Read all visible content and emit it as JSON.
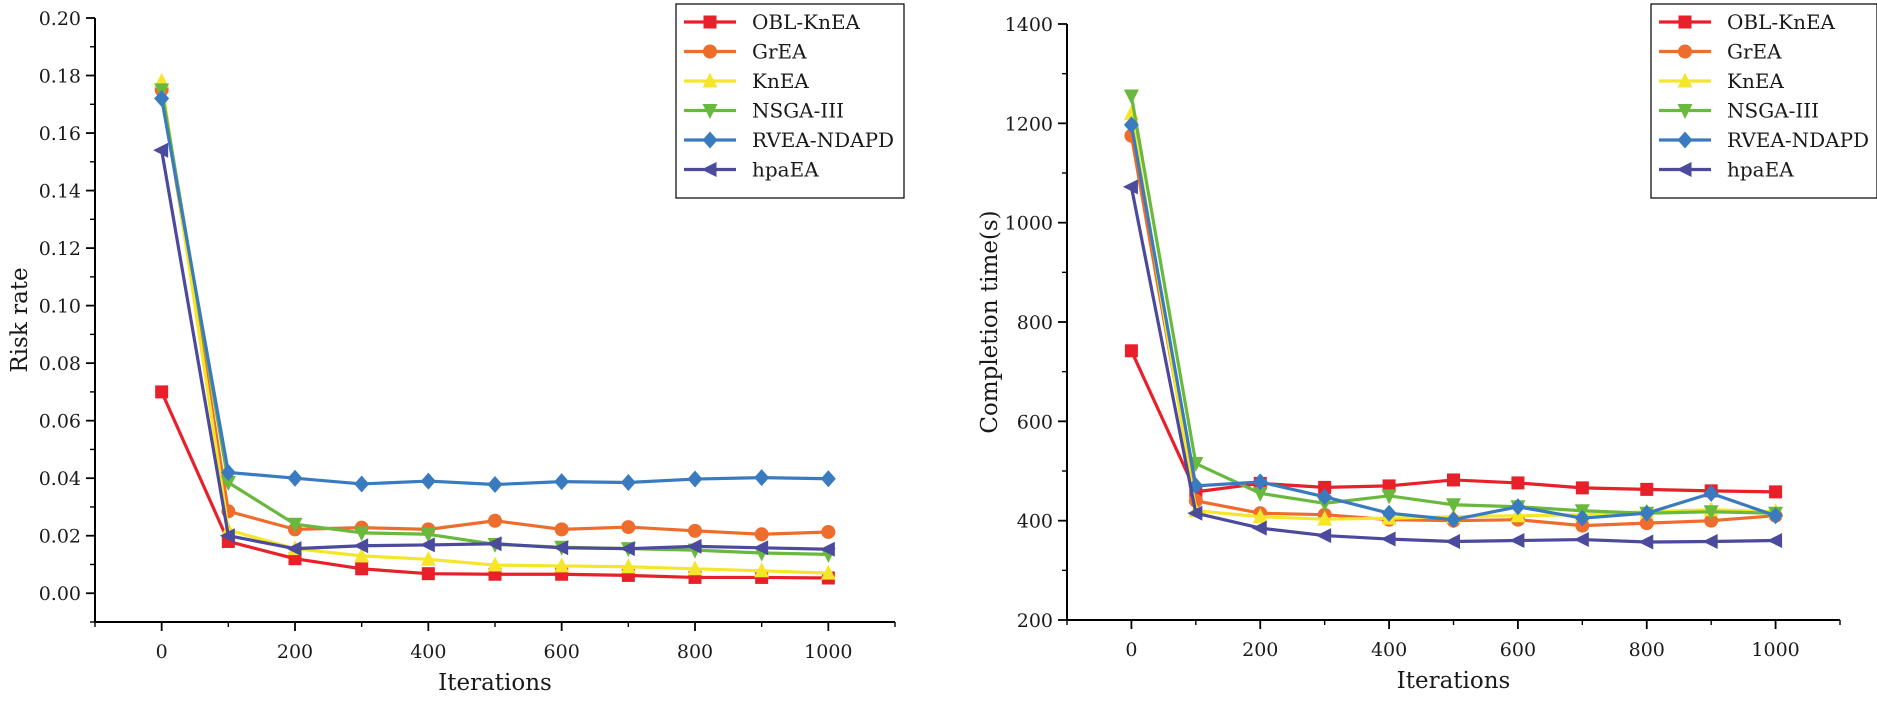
{
  "chart_data": [
    {
      "type": "line",
      "title": "",
      "xlabel": "Iterations",
      "ylabel": "Risk rate",
      "xlim": [
        -100,
        1100
      ],
      "ylim": [
        -0.01,
        0.2
      ],
      "x": [
        0,
        100,
        200,
        300,
        400,
        500,
        600,
        700,
        800,
        900,
        1000
      ],
      "x_ticks": [
        0,
        200,
        400,
        600,
        800,
        1000
      ],
      "x_tick_labels": [
        "0",
        "200",
        "400",
        "600",
        "800",
        "1000"
      ],
      "y_ticks": [
        0,
        0.02,
        0.04,
        0.06,
        0.08,
        0.1,
        0.12,
        0.14,
        0.16,
        0.18,
        0.2
      ],
      "y_tick_labels": [
        "0.00",
        "0.02",
        "0.04",
        "0.06",
        "0.08",
        "0.10",
        "0.12",
        "0.14",
        "0.16",
        "0.18",
        "0.20"
      ],
      "legend_position": "top-right",
      "grid": false,
      "series": [
        {
          "name": "OBL-KnEA",
          "color": "#e8202a",
          "marker": "square",
          "values": [
            0.07,
            0.018,
            0.012,
            0.0085,
            0.0068,
            0.0066,
            0.0066,
            0.0062,
            0.0055,
            0.0055,
            0.0053
          ]
        },
        {
          "name": "GrEA",
          "color": "#ee6d2c",
          "marker": "circle",
          "values": [
            0.175,
            0.0285,
            0.0222,
            0.0228,
            0.0222,
            0.0252,
            0.0222,
            0.023,
            0.0217,
            0.0205,
            0.0213
          ]
        },
        {
          "name": "KnEA",
          "color": "#f5e629",
          "marker": "triangle-up",
          "values": [
            0.178,
            0.022,
            0.0155,
            0.013,
            0.0118,
            0.0098,
            0.0095,
            0.0092,
            0.0085,
            0.0078,
            0.007
          ]
        },
        {
          "name": "NSGA-III",
          "color": "#6ab93f",
          "marker": "triangle-down",
          "values": [
            0.175,
            0.0385,
            0.024,
            0.021,
            0.0205,
            0.017,
            0.016,
            0.0155,
            0.015,
            0.014,
            0.0135
          ]
        },
        {
          "name": "RVEA-NDAPD",
          "color": "#3a7bbf",
          "marker": "diamond",
          "values": [
            0.172,
            0.042,
            0.04,
            0.038,
            0.039,
            0.0378,
            0.0388,
            0.0385,
            0.0397,
            0.0402,
            0.0398
          ]
        },
        {
          "name": "hpaEA",
          "color": "#4b4a9c",
          "marker": "triangle-left",
          "values": [
            0.154,
            0.02,
            0.0155,
            0.0165,
            0.0168,
            0.0172,
            0.0158,
            0.0155,
            0.0163,
            0.0158,
            0.0153
          ]
        }
      ]
    },
    {
      "type": "line",
      "title": "",
      "xlabel": "Iterations",
      "ylabel": "Completion time(s)",
      "xlim": [
        -100,
        1100
      ],
      "ylim": [
        200,
        1400
      ],
      "x": [
        0,
        100,
        200,
        300,
        400,
        500,
        600,
        700,
        800,
        900,
        1000
      ],
      "x_ticks": [
        0,
        200,
        400,
        600,
        800,
        1000
      ],
      "x_tick_labels": [
        "0",
        "200",
        "400",
        "600",
        "800",
        "1000"
      ],
      "y_ticks": [
        200,
        400,
        600,
        800,
        1000,
        1200,
        1400
      ],
      "y_tick_labels": [
        "200",
        "400",
        "600",
        "800",
        "1000",
        "1200",
        "1400"
      ],
      "legend_position": "top-right",
      "grid": false,
      "series": [
        {
          "name": "OBL-KnEA",
          "color": "#e8202a",
          "marker": "square",
          "values": [
            742,
            458,
            475,
            467,
            470,
            482,
            476,
            466,
            463,
            460,
            458
          ]
        },
        {
          "name": "GrEA",
          "color": "#ee6d2c",
          "marker": "circle",
          "values": [
            1175,
            440,
            415,
            412,
            402,
            400,
            402,
            390,
            395,
            400,
            410
          ]
        },
        {
          "name": "KnEA",
          "color": "#f5e629",
          "marker": "triangle-up",
          "values": [
            1220,
            420,
            408,
            403,
            405,
            408,
            410,
            412,
            418,
            422,
            418
          ]
        },
        {
          "name": "NSGA-III",
          "color": "#6ab93f",
          "marker": "triangle-down",
          "values": [
            1255,
            515,
            455,
            435,
            450,
            432,
            428,
            420,
            415,
            418,
            415
          ]
        },
        {
          "name": "RVEA-NDAPD",
          "color": "#3a7bbf",
          "marker": "diamond",
          "values": [
            1197,
            470,
            478,
            448,
            415,
            402,
            428,
            405,
            415,
            455,
            410
          ]
        },
        {
          "name": "hpaEA",
          "color": "#4b4a9c",
          "marker": "triangle-left",
          "values": [
            1072,
            415,
            385,
            370,
            363,
            358,
            360,
            362,
            357,
            358,
            360
          ]
        }
      ]
    }
  ]
}
